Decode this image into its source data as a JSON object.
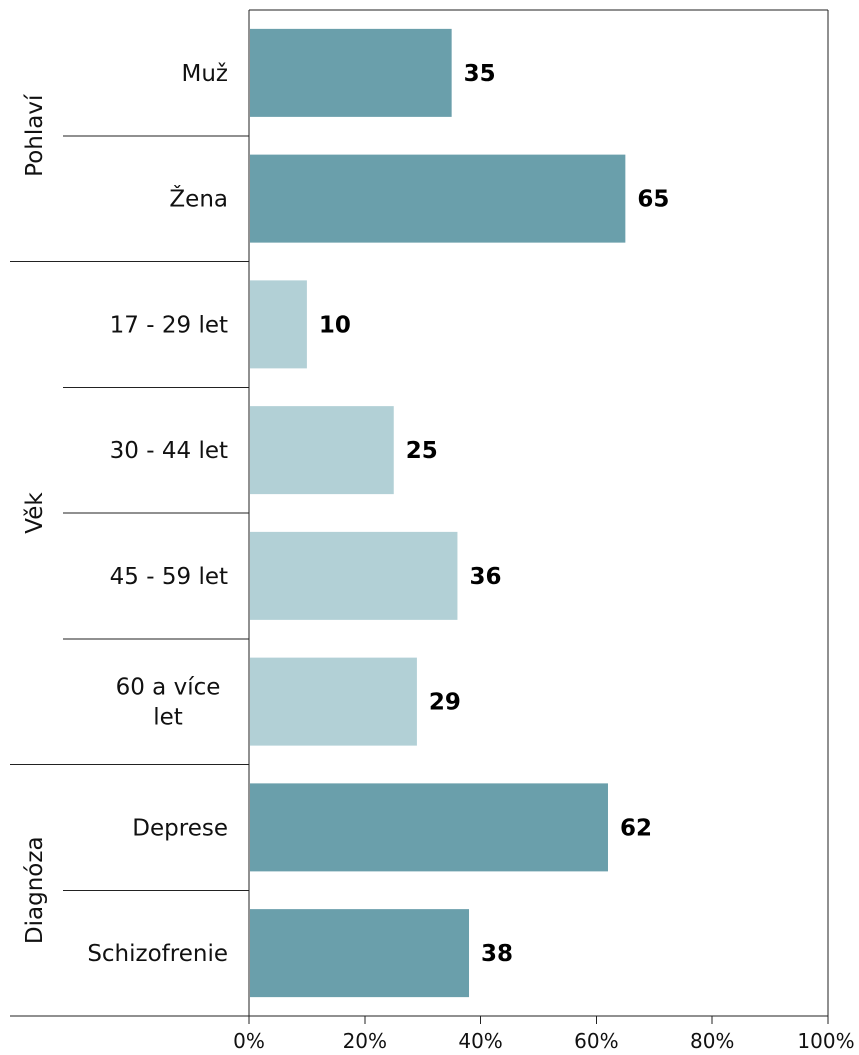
{
  "chart_data": {
    "type": "bar",
    "orientation": "horizontal",
    "x_axis": {
      "min": 0,
      "max": 100,
      "tick_labels": [
        "0%",
        "20%",
        "40%",
        "60%",
        "80%",
        "100%"
      ]
    },
    "groups": [
      {
        "label": "Pohlaví",
        "color": "#6a9fab",
        "items": [
          {
            "category": "Muž",
            "value": 35
          },
          {
            "category": "Žena",
            "value": 65
          }
        ]
      },
      {
        "label": "Věk",
        "color": "#b2d0d6",
        "items": [
          {
            "category": "17 - 29 let",
            "value": 10
          },
          {
            "category": "30 - 44 let",
            "value": 25
          },
          {
            "category": "45 - 59 let",
            "value": 36
          },
          {
            "category": [
              "60 a více",
              "let"
            ],
            "value": 29
          }
        ]
      },
      {
        "label": "Diagnóza",
        "color": "#6a9fab",
        "items": [
          {
            "category": "Deprese",
            "value": 62
          },
          {
            "category": "Schizofrenie",
            "value": 38
          }
        ]
      }
    ],
    "grid": false,
    "legend": "none"
  }
}
